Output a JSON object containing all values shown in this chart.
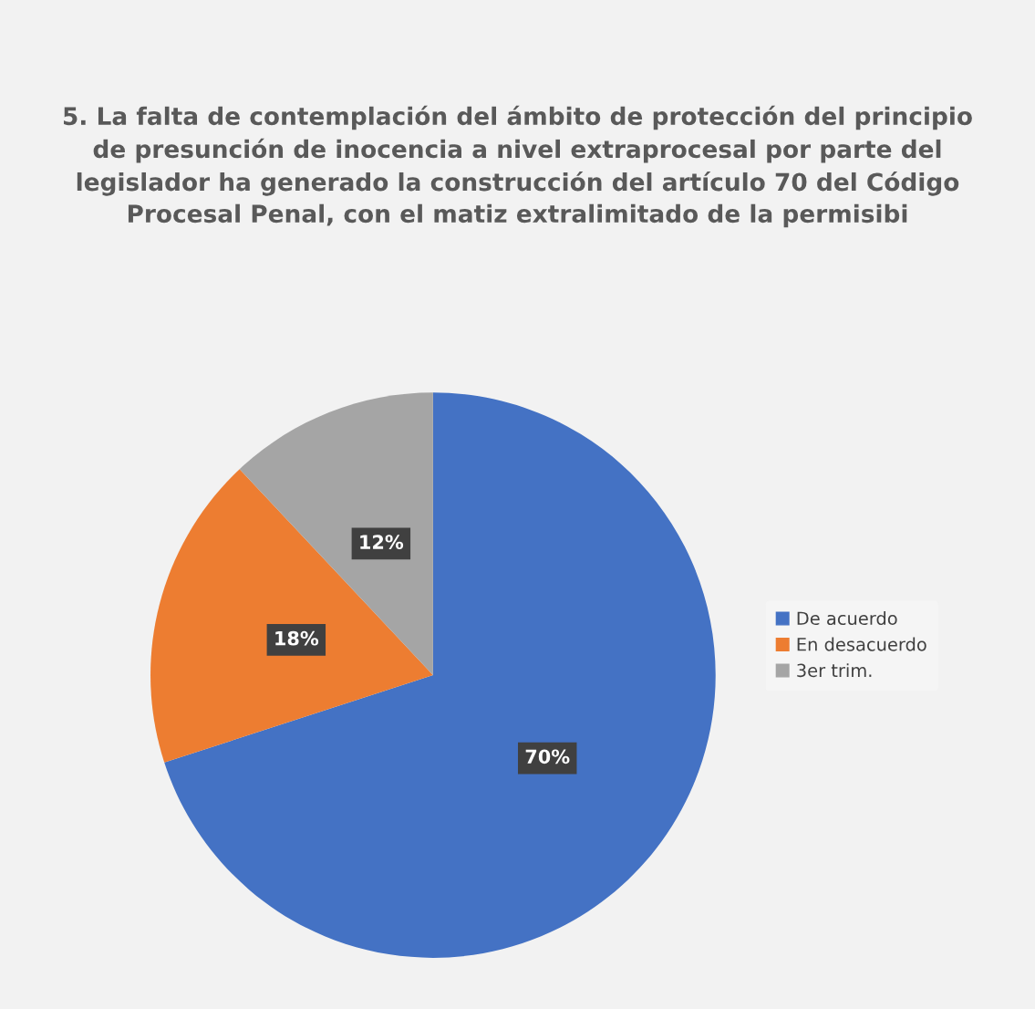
{
  "chart_data": {
    "type": "pie",
    "title": "5. La falta de contemplación del ámbito de protección del principio\nde presunción de inocencia a nivel extraprocesal por parte del\nlegislador ha generado la construcción del artículo 70 del Código\nProcesal Penal, con el matiz extralimitado de la permisibi",
    "categories": [
      "De acuerdo",
      "En desacuerdo",
      "3er trim."
    ],
    "values": [
      70,
      18,
      12
    ],
    "colors": [
      "#4472c4",
      "#ed7d31",
      "#a5a5a5"
    ],
    "value_labels": [
      "70%",
      "18%",
      "12%"
    ],
    "legend": "right"
  }
}
